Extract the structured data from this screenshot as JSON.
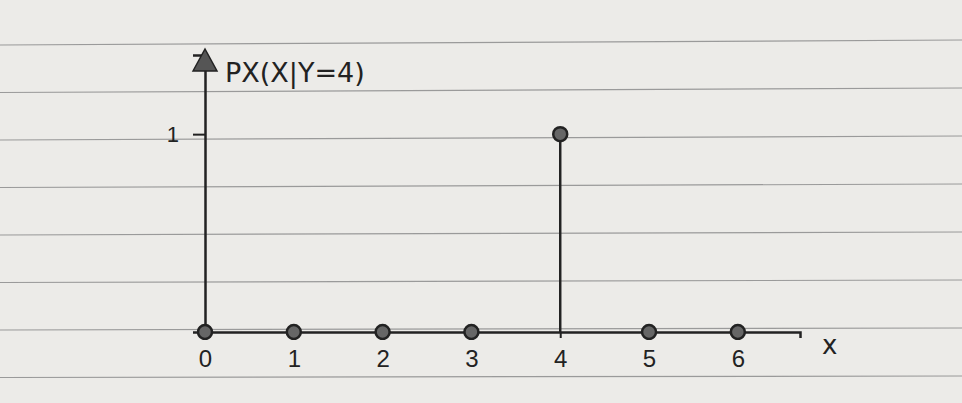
{
  "chart_data": {
    "type": "stem",
    "title": "PX(X|Y=4)",
    "x_label": "x",
    "x": [
      0,
      1,
      2,
      3,
      4,
      5,
      6
    ],
    "values": [
      0,
      0,
      0,
      0,
      1,
      0,
      0
    ],
    "xlim": [
      0,
      6.7
    ],
    "ylim": [
      0,
      1.4
    ],
    "xticks": [
      0,
      1,
      2,
      3,
      4,
      5,
      6
    ],
    "yticks": [
      1
    ],
    "color": "#222222",
    "marker": "circle"
  }
}
